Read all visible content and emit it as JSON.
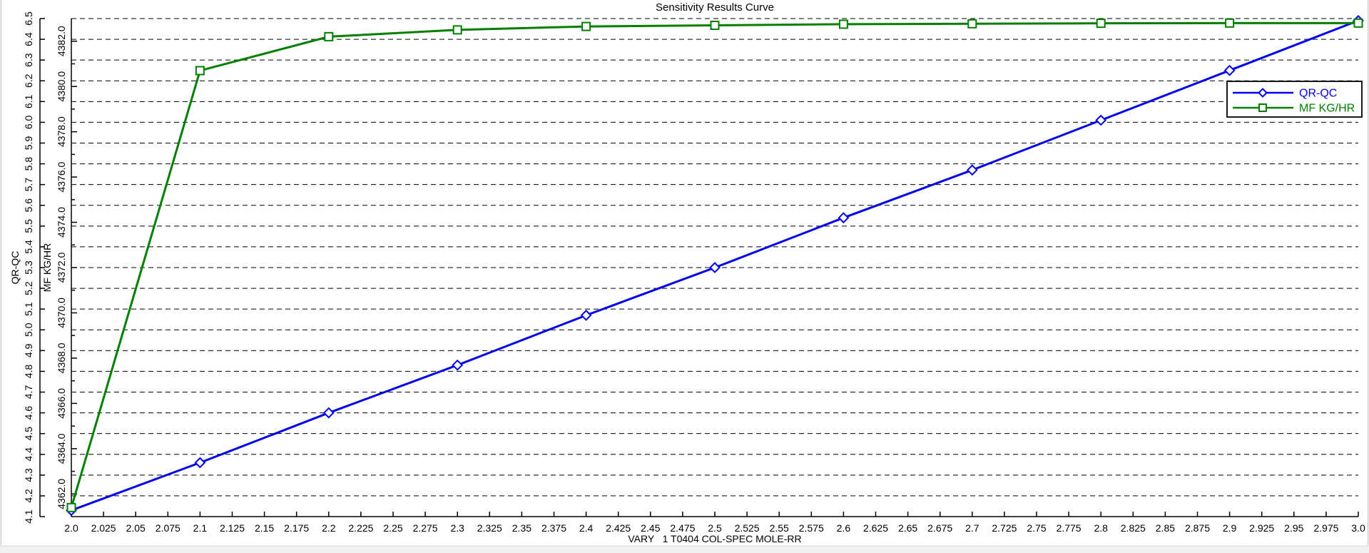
{
  "window": {
    "panel_background": "#ffffff",
    "frame_background": "#f0f0f0"
  },
  "chart_data": {
    "type": "line",
    "title": "Sensitivity Results Curve",
    "xlabel": "VARY   1 T0404 COL-SPEC MOLE-RR",
    "grid": {
      "horizontal_dashed": true,
      "color": "#000000"
    },
    "x": [
      2.0,
      2.1,
      2.2,
      2.3,
      2.4,
      2.5,
      2.6,
      2.7,
      2.8,
      2.9,
      3.0
    ],
    "series": [
      {
        "name": "QR-QC",
        "axis": "left_outer",
        "color": "#0000EE",
        "marker": "diamond",
        "values": [
          4.13,
          4.36,
          4.6,
          4.83,
          5.07,
          5.3,
          5.54,
          5.77,
          6.01,
          6.25,
          6.49
        ]
      },
      {
        "name": "MF KG/HR",
        "axis": "left_inner",
        "color": "#008000",
        "marker": "square",
        "values": [
          4361.4,
          4380.7,
          4382.2,
          4382.5,
          4382.65,
          4382.7,
          4382.75,
          4382.77,
          4382.79,
          4382.8,
          4382.8
        ]
      }
    ],
    "axes": {
      "x": {
        "min": 2.0,
        "max": 3.0,
        "tick_step": 0.025,
        "tick_labels": [
          "2.0",
          "2.025",
          "2.05",
          "2.075",
          "2.1",
          "2.125",
          "2.15",
          "2.175",
          "2.2",
          "2.225",
          "2.25",
          "2.275",
          "2.3",
          "2.325",
          "2.35",
          "2.375",
          "2.4",
          "2.425",
          "2.45",
          "2.475",
          "2.5",
          "2.525",
          "2.55",
          "2.575",
          "2.6",
          "2.625",
          "2.65",
          "2.675",
          "2.7",
          "2.725",
          "2.75",
          "2.775",
          "2.8",
          "2.825",
          "2.85",
          "2.875",
          "2.9",
          "2.925",
          "2.95",
          "2.975",
          "3.0"
        ]
      },
      "left_outer": {
        "title": "QR-QC",
        "min": 4.1,
        "max": 6.5,
        "tick_step": 0.1,
        "tick_labels": [
          "4.1",
          "4.2",
          "4.3",
          "4.4",
          "4.5",
          "4.6",
          "4.7",
          "4.8",
          "4.9",
          "5.0",
          "5.1",
          "5.2",
          "5.3",
          "5.4",
          "5.5",
          "5.6",
          "5.7",
          "5.8",
          "5.9",
          "6.0",
          "6.1",
          "6.2",
          "6.3",
          "6.4",
          "6.5"
        ]
      },
      "left_inner": {
        "title": "MF KG/HR",
        "min": 4361.0,
        "max": 4383.0,
        "major_tick_step": 2.0,
        "minor_tick_step": 1.0,
        "tick_labels": [
          "4362.0",
          "4364.0",
          "4366.0",
          "4368.0",
          "4370.0",
          "4372.0",
          "4374.0",
          "4376.0",
          "4378.0",
          "4380.0",
          "4382.0"
        ]
      }
    },
    "legend": {
      "position": "top-right",
      "entries": [
        "QR-QC",
        "MF KG/HR"
      ]
    }
  }
}
